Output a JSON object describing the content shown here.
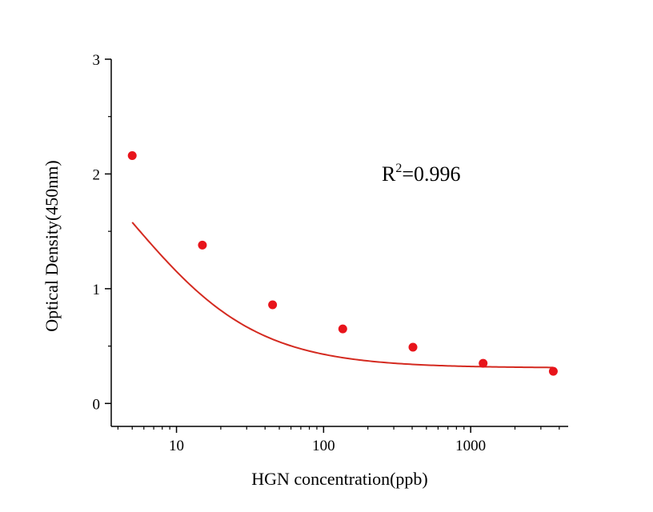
{
  "chart_data": {
    "type": "scatter",
    "title": "",
    "xlabel": "HGN  concentration(ppb)",
    "ylabel": "Optical Density(450nm)",
    "x_scale": "log",
    "xlim": [
      3.6,
      4600
    ],
    "ylim": [
      -0.2,
      3
    ],
    "x_major_ticks": [
      10,
      100,
      1000
    ],
    "x_tick_labels": [
      "10",
      "100",
      "1000"
    ],
    "y_major_ticks": [
      0,
      1,
      2,
      3
    ],
    "y_tick_labels": [
      "0",
      "1",
      "2",
      "3"
    ],
    "grid": false,
    "legend": "none",
    "colors": {
      "points": "#e8141b",
      "fit_line": "#d42a20",
      "axes": "#000000"
    },
    "series": [
      {
        "type": "scatter",
        "x": [
          5,
          15,
          45,
          135,
          405,
          1215,
          3645
        ],
        "y": [
          2.16,
          1.38,
          0.86,
          0.65,
          0.49,
          0.35,
          0.28
        ]
      },
      {
        "type": "line",
        "fit": "four-parameter logistic",
        "params": {
          "A": 2.9,
          "B": 1.0,
          "C": 4.8,
          "D": 0.31
        },
        "x_range": [
          5,
          3645
        ]
      }
    ],
    "annotation": {
      "text": "R",
      "sup": "2",
      "rest": "=0.996"
    }
  }
}
